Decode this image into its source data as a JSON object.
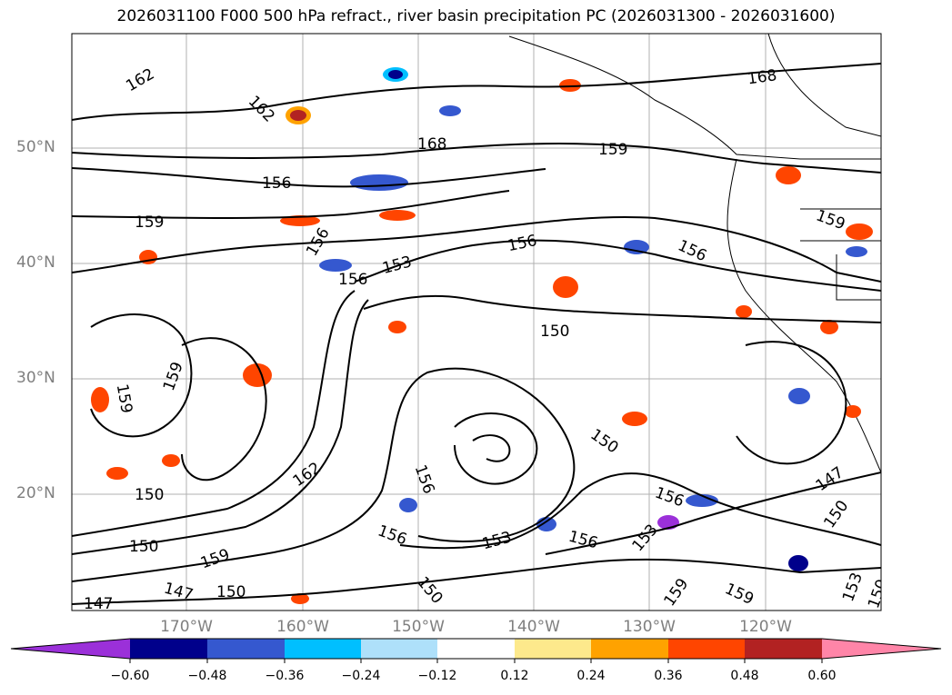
{
  "title": "2026031100 F000 500 hPa refract., river basin precipitation PC (2026031300 - 2026031600)",
  "lat_labels": [
    "50°N",
    "40°N",
    "30°N",
    "20°N"
  ],
  "lon_labels": [
    "170°W",
    "160°W",
    "150°W",
    "140°W",
    "130°W",
    "120°W"
  ],
  "contour_labels": [
    "162",
    "162",
    "168",
    "168",
    "159",
    "156",
    "159",
    "156",
    "156",
    "153",
    "156",
    "156",
    "159",
    "150",
    "159",
    "159",
    "162",
    "156",
    "150",
    "150",
    "150",
    "156",
    "153",
    "156",
    "159",
    "150",
    "147",
    "147",
    "150",
    "153",
    "147",
    "150",
    "159",
    "159",
    "153",
    "150",
    "156"
  ],
  "colorbar": {
    "ticks": [
      "−0.60",
      "−0.48",
      "−0.36",
      "−0.24",
      "−0.12",
      "0.12",
      "0.24",
      "0.36",
      "0.48",
      "0.60"
    ],
    "colors": [
      "#9b30d9",
      "#00008b",
      "#3558cf",
      "#00bfff",
      "#aee0fa",
      "#ffffff",
      "#fde98c",
      "#ffa200",
      "#ff4500",
      "#b22222",
      "#ff85a8"
    ]
  }
}
